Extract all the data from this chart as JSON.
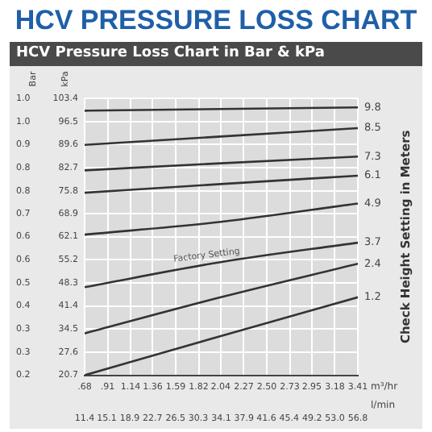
{
  "chart_data": {
    "type": "line",
    "title": "HCV PRESSURE LOSS CHART",
    "subtitle": "HCV Pressure Loss Chart in Bar & kPa",
    "xlabel": "m³/hr",
    "x2label": "l/min",
    "ylabel": "kPa",
    "y2label": "Bar",
    "xlim": [
      0.68,
      3.41
    ],
    "xticks": [
      {
        "value": 0.68,
        "label": ".68"
      },
      {
        "value": 0.91,
        "label": ".91"
      },
      1.14,
      1.36,
      1.59,
      1.82,
      2.04,
      2.27,
      {
        "value": 2.5,
        "label": "2.50"
      },
      2.73,
      2.95,
      3.18,
      3.41
    ],
    "x2lim": [
      11.4,
      56.8
    ],
    "x2ticks": [
      11.4,
      15.1,
      18.9,
      22.7,
      26.5,
      30.3,
      34.1,
      37.9,
      41.6,
      45.4,
      49.2,
      {
        "value": 53,
        "label": "53.0"
      },
      56.8
    ],
    "ylim": [
      20.7,
      103.4
    ],
    "yticks": [
      20.7,
      27.6,
      34.5,
      41.4,
      48.3,
      55.2,
      62.1,
      68.9,
      75.8,
      82.7,
      89.6,
      96.5,
      103.4
    ],
    "y2lim": [
      0.207,
      1.034
    ],
    "y2ticks": [
      {
        "value": 0.207,
        "label": "0.2"
      },
      {
        "value": 0.276,
        "label": "0.3"
      },
      {
        "value": 0.345,
        "label": "0.3"
      },
      {
        "value": 0.414,
        "label": "0.4"
      },
      {
        "value": 0.483,
        "label": "0.5"
      },
      {
        "value": 0.552,
        "label": "0.6"
      },
      {
        "value": 0.621,
        "label": "0.6"
      },
      {
        "value": 0.689,
        "label": "0.7"
      },
      {
        "value": 0.758,
        "label": "0.8"
      },
      {
        "value": 0.827,
        "label": "0.8"
      },
      {
        "value": 0.896,
        "label": "0.9"
      },
      {
        "value": 0.965,
        "label": "1.0"
      },
      {
        "value": 1.034,
        "label": "1.0"
      }
    ],
    "x": [
      0.68,
      2.04,
      3.41
    ],
    "grid": true,
    "legend": false,
    "marker": "none",
    "line_style": "solid",
    "series": [
      {
        "name": "9.8",
        "color": "#333333",
        "values": [
          99.7,
          100.2,
          100.7
        ]
      },
      {
        "name": "8.5",
        "color": "#333333",
        "values": [
          89.5,
          92.0,
          94.5
        ]
      },
      {
        "name": "7.3",
        "color": "#333333",
        "values": [
          81.9,
          84.0,
          86.0
        ]
      },
      {
        "name": "6.1",
        "color": "#333333",
        "values": [
          75.2,
          77.8,
          80.3
        ]
      },
      {
        "name": "4.9",
        "color": "#333333",
        "values": [
          62.7,
          66.5,
          72.0
        ]
      },
      {
        "name": "3.7",
        "color": "#333333",
        "values": [
          47.0,
          54.5,
          60.3
        ]
      },
      {
        "name": "2.4",
        "color": "#333333",
        "values": [
          33.2,
          44.0,
          54.0
        ]
      },
      {
        "name": "1.2",
        "color": "#333333",
        "values": [
          20.7,
          32.4,
          44.0
        ]
      }
    ],
    "annotations": [
      {
        "text": "Factory Setting",
        "x": 1.9,
        "y": 56.5
      },
      "Check Height Setting in Meters"
    ]
  }
}
